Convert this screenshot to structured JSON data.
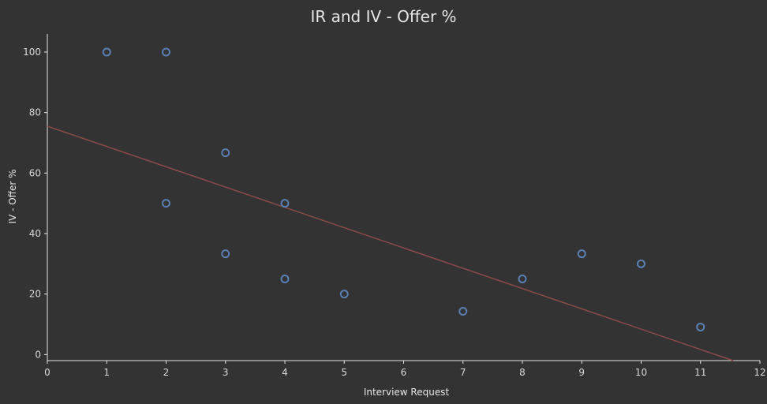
{
  "chart_data": {
    "type": "scatter",
    "title": "IR and IV - Offer %",
    "xlabel": "Interview Request",
    "ylabel": "IV - Offer %",
    "xlim": [
      0,
      12
    ],
    "ylim": [
      -2,
      106
    ],
    "x_ticks": [
      0,
      1,
      2,
      3,
      4,
      5,
      6,
      7,
      8,
      9,
      10,
      11,
      12
    ],
    "y_ticks": [
      0,
      20,
      40,
      60,
      80,
      100
    ],
    "grid": false,
    "series": [
      {
        "points": [
          {
            "x": 1,
            "y": 100
          },
          {
            "x": 2,
            "y": 100
          },
          {
            "x": 2,
            "y": 50
          },
          {
            "x": 3,
            "y": 66.7
          },
          {
            "x": 3,
            "y": 33.3
          },
          {
            "x": 4,
            "y": 50
          },
          {
            "x": 4,
            "y": 25
          },
          {
            "x": 5,
            "y": 20
          },
          {
            "x": 7,
            "y": 14.3
          },
          {
            "x": 8,
            "y": 25
          },
          {
            "x": 9,
            "y": 33.3
          },
          {
            "x": 10,
            "y": 30
          },
          {
            "x": 11,
            "y": 9.1
          }
        ]
      }
    ],
    "trend_line": {
      "x": [
        0,
        11.55
      ],
      "y": [
        75.5,
        -2
      ]
    },
    "colors": {
      "background": "#333333",
      "axis": "#e6e6e6",
      "text": "#e6e6e6",
      "point_stroke": "#5a7fb2",
      "trend_line": "#8b4a4a"
    }
  }
}
